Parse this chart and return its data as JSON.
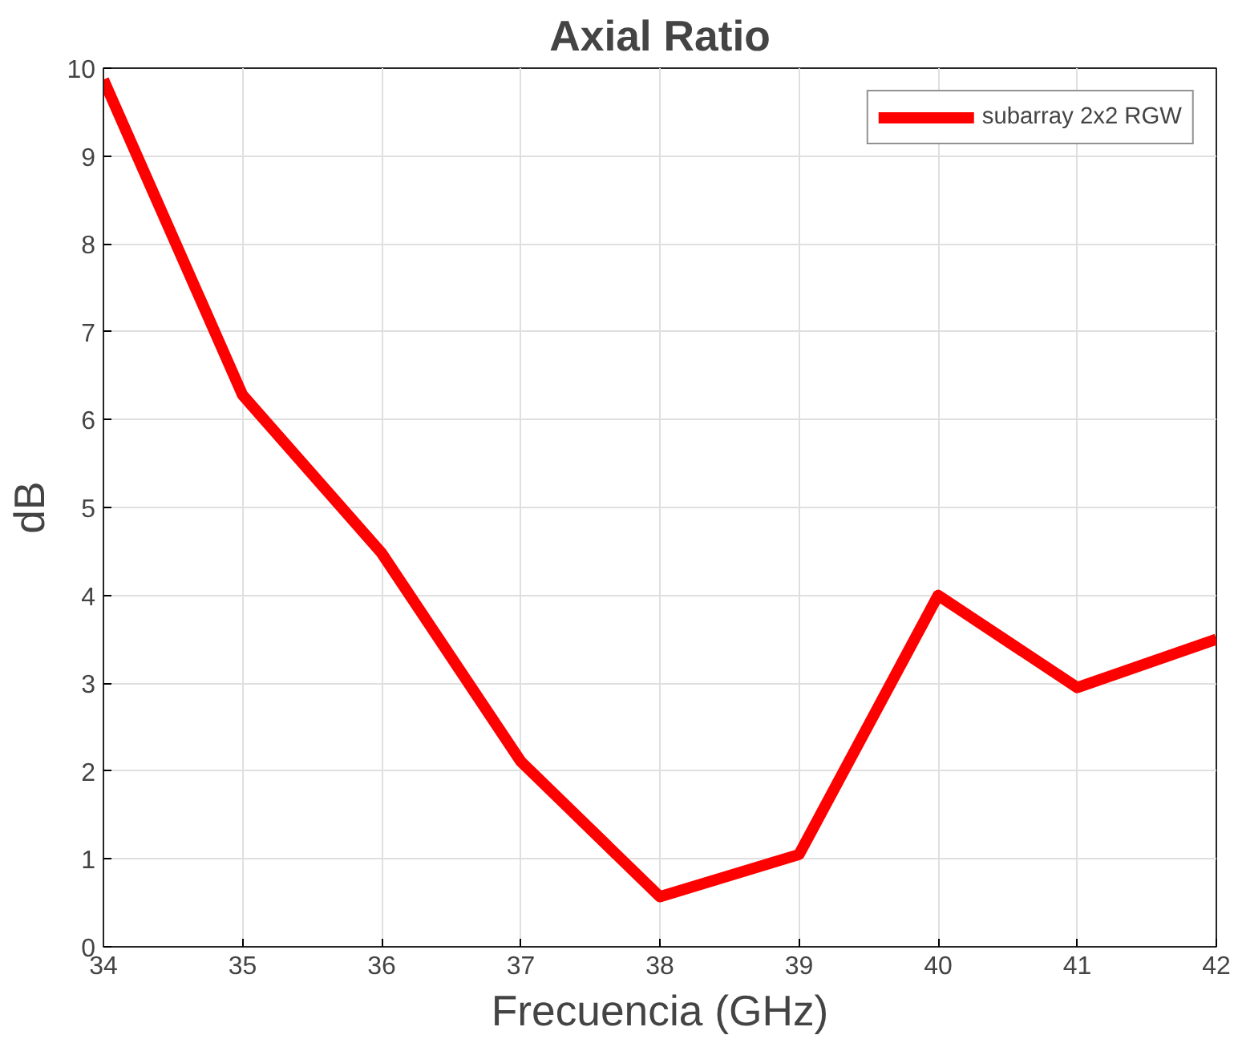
{
  "chart_data": {
    "type": "line",
    "title": "Axial Ratio",
    "xlabel": "Frecuencia (GHz)",
    "ylabel": "dB",
    "x": [
      34,
      35,
      36,
      37,
      38,
      39,
      40,
      41,
      42
    ],
    "series": [
      {
        "name": "subarray 2x2 RGW",
        "color": "#ff0000",
        "values": [
          9.87,
          6.28,
          4.48,
          2.11,
          0.57,
          1.05,
          4.0,
          2.95,
          3.5
        ]
      }
    ],
    "xlim": [
      34,
      42
    ],
    "xticks": [
      34,
      35,
      36,
      37,
      38,
      39,
      40,
      41,
      42
    ],
    "ylim": [
      0,
      10
    ],
    "yticks": [
      0,
      1,
      2,
      3,
      4,
      5,
      6,
      7,
      8,
      9,
      10
    ],
    "grid": true,
    "legend": "top right",
    "line_style": "solid",
    "marker": "none"
  }
}
